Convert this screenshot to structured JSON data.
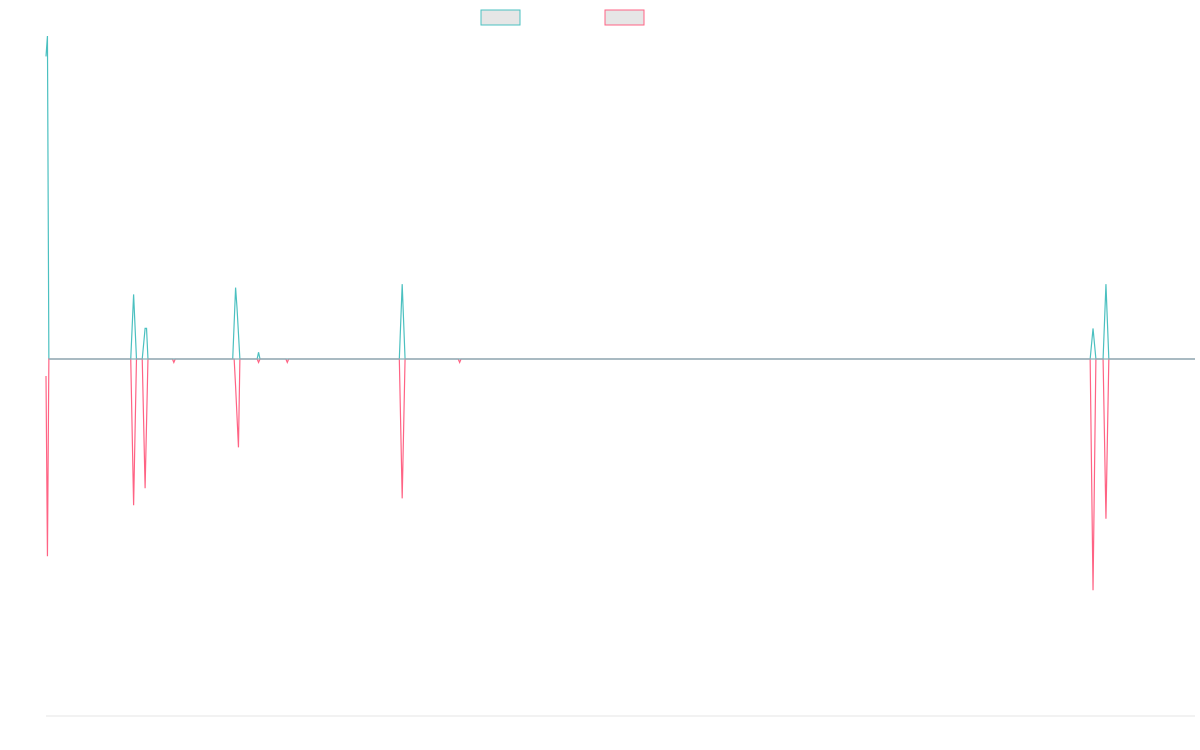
{
  "chart_data": {
    "type": "line",
    "title": "",
    "xlabel": "",
    "ylabel": "",
    "grid": false,
    "legend_position": "top-center",
    "x_count": 800,
    "ylim": [
      -100,
      100
    ],
    "series": [
      {
        "name": "",
        "color": "#4bc0c0",
        "fill": "#e6e6e6",
        "baseline": 5,
        "points": [
          [
            0,
            94
          ],
          [
            1,
            100
          ],
          [
            2,
            5
          ],
          [
            59,
            5
          ],
          [
            61,
            24
          ],
          [
            63,
            5
          ],
          [
            67,
            5
          ],
          [
            69,
            14
          ],
          [
            70,
            14
          ],
          [
            71,
            5
          ],
          [
            88,
            5
          ],
          [
            89,
            5
          ],
          [
            90,
            5
          ],
          [
            130,
            5
          ],
          [
            132,
            26
          ],
          [
            133,
            20
          ],
          [
            135,
            5
          ],
          [
            147,
            5
          ],
          [
            148,
            7
          ],
          [
            149,
            5
          ],
          [
            167,
            5
          ],
          [
            168,
            5
          ],
          [
            169,
            5
          ],
          [
            246,
            5
          ],
          [
            248,
            27
          ],
          [
            250,
            5
          ],
          [
            287,
            5
          ],
          [
            288,
            5
          ],
          [
            289,
            5
          ],
          [
            727,
            5
          ],
          [
            729,
            14
          ],
          [
            731,
            5
          ],
          [
            736,
            5
          ],
          [
            738,
            27
          ],
          [
            740,
            5
          ],
          [
            800,
            5
          ]
        ]
      },
      {
        "name": "",
        "color": "#ff6384",
        "fill": "#e6e6e6",
        "baseline": 5,
        "points": [
          [
            0,
            0
          ],
          [
            1,
            -53
          ],
          [
            2,
            5
          ],
          [
            59,
            5
          ],
          [
            61,
            -38
          ],
          [
            63,
            5
          ],
          [
            67,
            5
          ],
          [
            69,
            -33
          ],
          [
            71,
            5
          ],
          [
            88,
            5
          ],
          [
            89,
            4
          ],
          [
            90,
            5
          ],
          [
            130,
            5
          ],
          [
            131,
            5
          ],
          [
            132,
            -3
          ],
          [
            134,
            -21
          ],
          [
            135,
            5
          ],
          [
            147,
            5
          ],
          [
            148,
            4
          ],
          [
            149,
            5
          ],
          [
            167,
            5
          ],
          [
            168,
            4
          ],
          [
            169,
            5
          ],
          [
            246,
            5
          ],
          [
            248,
            -36
          ],
          [
            250,
            5
          ],
          [
            287,
            5
          ],
          [
            288,
            4
          ],
          [
            289,
            5
          ],
          [
            727,
            5
          ],
          [
            729,
            -63
          ],
          [
            731,
            5
          ],
          [
            736,
            5
          ],
          [
            738,
            -42
          ],
          [
            740,
            5
          ],
          [
            800,
            5
          ]
        ]
      }
    ]
  },
  "colors": {
    "axis": "#e5e5e5",
    "baseline": "#8ab0b8",
    "background": "#ffffff"
  }
}
